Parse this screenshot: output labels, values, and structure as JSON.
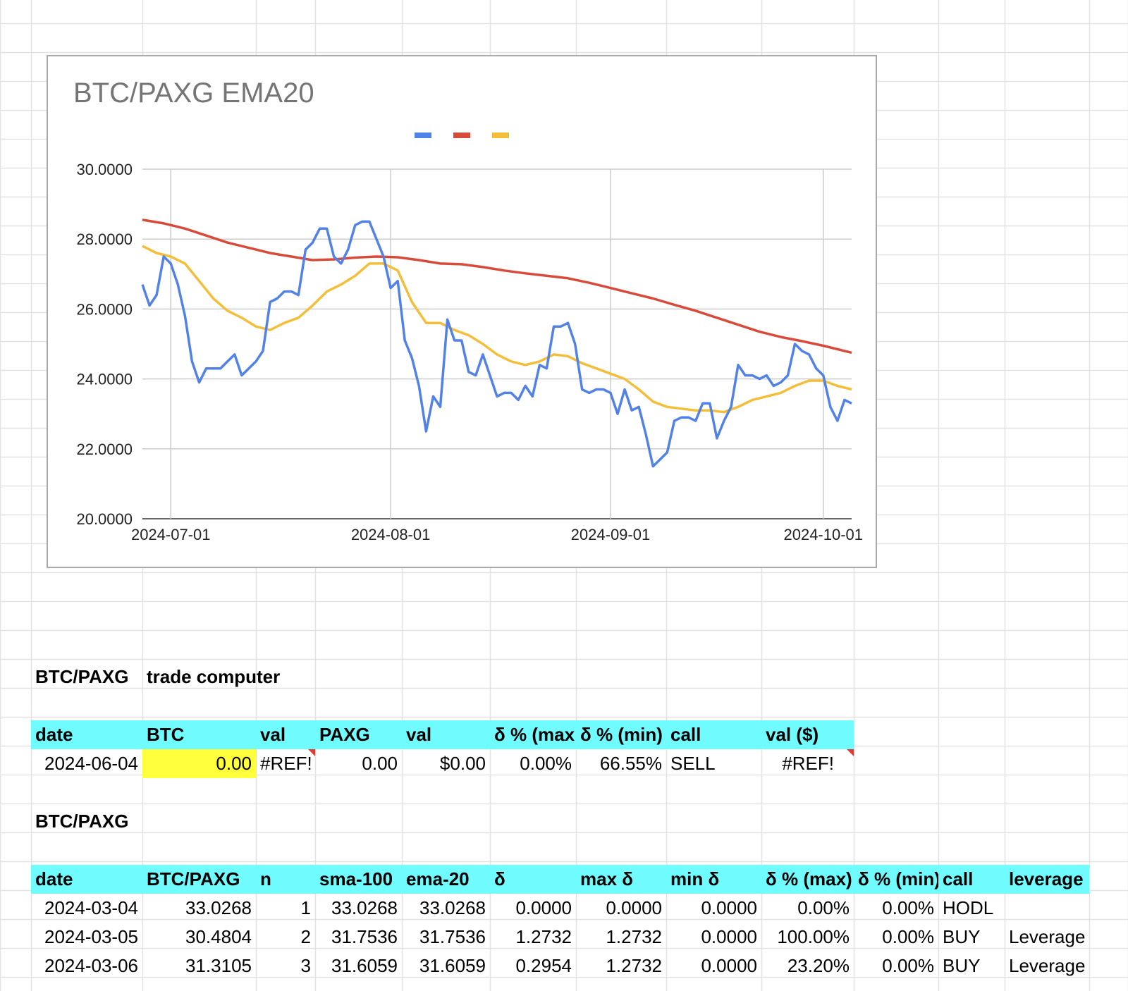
{
  "chart_data": {
    "type": "line",
    "title": "BTC/PAXG EMA20",
    "xlabel": "",
    "ylabel": "",
    "ylim": [
      20,
      30
    ],
    "yticks": [
      "30.0000",
      "28.0000",
      "26.0000",
      "24.0000",
      "22.0000",
      "20.0000"
    ],
    "xticks": [
      "2024-07-01",
      "2024-08-01",
      "2024-09-01",
      "2024-10-01"
    ],
    "xrange": [
      "2024-06-27",
      "2024-10-05"
    ],
    "grid": true,
    "legend": "top",
    "colors": [
      "#5282e8",
      "#d84b3b",
      "#f3bf3b"
    ],
    "series": [
      {
        "x": [
          "2024-06-27",
          "2024-06-28",
          "2024-06-29",
          "2024-06-30",
          "2024-07-01",
          "2024-07-02",
          "2024-07-03",
          "2024-07-04",
          "2024-07-05",
          "2024-07-06",
          "2024-07-07",
          "2024-07-08",
          "2024-07-09",
          "2024-07-10",
          "2024-07-11",
          "2024-07-12",
          "2024-07-13",
          "2024-07-14",
          "2024-07-15",
          "2024-07-16",
          "2024-07-17",
          "2024-07-18",
          "2024-07-19",
          "2024-07-20",
          "2024-07-21",
          "2024-07-22",
          "2024-07-23",
          "2024-07-24",
          "2024-07-25",
          "2024-07-26",
          "2024-07-27",
          "2024-07-28",
          "2024-07-29",
          "2024-07-30",
          "2024-07-31",
          "2024-08-01",
          "2024-08-02",
          "2024-08-03",
          "2024-08-04",
          "2024-08-05",
          "2024-08-06",
          "2024-08-07",
          "2024-08-08",
          "2024-08-09",
          "2024-08-10",
          "2024-08-11",
          "2024-08-12",
          "2024-08-13",
          "2024-08-14",
          "2024-08-15",
          "2024-08-16",
          "2024-08-17",
          "2024-08-18",
          "2024-08-19",
          "2024-08-20",
          "2024-08-21",
          "2024-08-22",
          "2024-08-23",
          "2024-08-24",
          "2024-08-25",
          "2024-08-26",
          "2024-08-27",
          "2024-08-28",
          "2024-08-29",
          "2024-08-30",
          "2024-08-31",
          "2024-09-01",
          "2024-09-02",
          "2024-09-03",
          "2024-09-04",
          "2024-09-05",
          "2024-09-06",
          "2024-09-07",
          "2024-09-08",
          "2024-09-09",
          "2024-09-10",
          "2024-09-11",
          "2024-09-12",
          "2024-09-13",
          "2024-09-14",
          "2024-09-15",
          "2024-09-16",
          "2024-09-17",
          "2024-09-18",
          "2024-09-19",
          "2024-09-20",
          "2024-09-21",
          "2024-09-22",
          "2024-09-23",
          "2024-09-24",
          "2024-09-25",
          "2024-09-26",
          "2024-09-27",
          "2024-09-28",
          "2024-09-29",
          "2024-09-30",
          "2024-10-01",
          "2024-10-02",
          "2024-10-03",
          "2024-10-04",
          "2024-10-05"
        ],
        "y": [
          26.7,
          26.1,
          26.4,
          27.5,
          27.3,
          26.7,
          25.8,
          24.5,
          23.9,
          24.3,
          24.3,
          24.3,
          24.5,
          24.7,
          24.1,
          24.3,
          24.5,
          24.8,
          26.2,
          26.3,
          26.5,
          26.5,
          26.4,
          27.7,
          27.9,
          28.3,
          28.3,
          27.5,
          27.3,
          27.7,
          28.4,
          28.5,
          28.5,
          28.0,
          27.5,
          26.6,
          26.8,
          25.1,
          24.6,
          23.8,
          22.5,
          23.5,
          23.2,
          25.7,
          25.1,
          25.1,
          24.2,
          24.1,
          24.7,
          24.1,
          23.5,
          23.6,
          23.6,
          23.4,
          23.8,
          23.5,
          24.4,
          24.3,
          25.5,
          25.5,
          25.6,
          25.0,
          23.7,
          23.6,
          23.7,
          23.7,
          23.6,
          23.0,
          23.7,
          23.1,
          23.2,
          22.4,
          21.5,
          21.7,
          21.9,
          22.8,
          22.9,
          22.9,
          22.8,
          23.3,
          23.3,
          22.3,
          22.8,
          23.2,
          24.4,
          24.1,
          24.1,
          24.0,
          24.1,
          23.8,
          23.9,
          24.1,
          25.0,
          24.8,
          24.7,
          24.3,
          24.1,
          23.2,
          22.8,
          23.4,
          23.3
        ]
      },
      {
        "x": [
          "2024-06-27",
          "2024-06-30",
          "2024-07-03",
          "2024-07-06",
          "2024-07-09",
          "2024-07-12",
          "2024-07-15",
          "2024-07-18",
          "2024-07-21",
          "2024-07-24",
          "2024-07-27",
          "2024-07-30",
          "2024-08-02",
          "2024-08-05",
          "2024-08-08",
          "2024-08-11",
          "2024-08-14",
          "2024-08-17",
          "2024-08-20",
          "2024-08-23",
          "2024-08-26",
          "2024-08-29",
          "2024-09-01",
          "2024-09-04",
          "2024-09-07",
          "2024-09-10",
          "2024-09-13",
          "2024-09-16",
          "2024-09-19",
          "2024-09-22",
          "2024-09-25",
          "2024-09-28",
          "2024-10-01",
          "2024-10-05"
        ],
        "y": [
          28.55,
          28.45,
          28.3,
          28.1,
          27.9,
          27.75,
          27.6,
          27.5,
          27.4,
          27.42,
          27.47,
          27.5,
          27.48,
          27.4,
          27.3,
          27.28,
          27.2,
          27.1,
          27.02,
          26.95,
          26.88,
          26.75,
          26.6,
          26.45,
          26.3,
          26.12,
          25.95,
          25.75,
          25.55,
          25.35,
          25.2,
          25.08,
          24.95,
          24.75
        ]
      },
      {
        "x": [
          "2024-06-27",
          "2024-06-29",
          "2024-07-01",
          "2024-07-03",
          "2024-07-05",
          "2024-07-07",
          "2024-07-09",
          "2024-07-11",
          "2024-07-13",
          "2024-07-15",
          "2024-07-17",
          "2024-07-19",
          "2024-07-21",
          "2024-07-23",
          "2024-07-25",
          "2024-07-27",
          "2024-07-29",
          "2024-07-31",
          "2024-08-02",
          "2024-08-04",
          "2024-08-06",
          "2024-08-08",
          "2024-08-10",
          "2024-08-12",
          "2024-08-14",
          "2024-08-16",
          "2024-08-18",
          "2024-08-20",
          "2024-08-22",
          "2024-08-24",
          "2024-08-26",
          "2024-08-28",
          "2024-08-30",
          "2024-09-01",
          "2024-09-03",
          "2024-09-05",
          "2024-09-07",
          "2024-09-09",
          "2024-09-11",
          "2024-09-13",
          "2024-09-15",
          "2024-09-17",
          "2024-09-19",
          "2024-09-21",
          "2024-09-23",
          "2024-09-25",
          "2024-09-27",
          "2024-09-29",
          "2024-10-01",
          "2024-10-03",
          "2024-10-05"
        ],
        "y": [
          27.8,
          27.6,
          27.5,
          27.3,
          26.8,
          26.3,
          25.95,
          25.75,
          25.5,
          25.4,
          25.6,
          25.75,
          26.1,
          26.5,
          26.7,
          26.95,
          27.3,
          27.3,
          27.1,
          26.2,
          25.6,
          25.6,
          25.4,
          25.25,
          25.0,
          24.7,
          24.5,
          24.4,
          24.5,
          24.7,
          24.65,
          24.45,
          24.3,
          24.15,
          24.0,
          23.7,
          23.35,
          23.2,
          23.15,
          23.1,
          23.1,
          23.05,
          23.2,
          23.4,
          23.5,
          23.6,
          23.8,
          23.95,
          23.95,
          23.8,
          23.7
        ]
      }
    ]
  },
  "sheet": {
    "trade_title": {
      "a": "BTC/PAXG",
      "b": "trade computer"
    },
    "trade_headers": [
      "date",
      "BTC",
      "val",
      "PAXG",
      "val",
      "δ % (max",
      "δ % (min)",
      "call",
      "val ($)"
    ],
    "trade_row": [
      "2024-06-04",
      "0.00",
      "#REF!",
      "0.00",
      "$0.00",
      "0.00%",
      "66.55%",
      "SELL",
      "#REF!"
    ],
    "table_title": "BTC/PAXG",
    "table_headers": [
      "date",
      "BTC/PAXG",
      "n",
      "sma-100",
      "ema-20",
      "δ",
      "max δ",
      "min δ",
      "δ % (max)",
      "δ % (min)",
      "call",
      "leverage"
    ],
    "table_rows": [
      [
        "2024-03-04",
        "33.0268",
        "1",
        "33.0268",
        "33.0268",
        "0.0000",
        "0.0000",
        "0.0000",
        "0.00%",
        "0.00%",
        "HODL",
        ""
      ],
      [
        "2024-03-05",
        "30.4804",
        "2",
        "31.7536",
        "31.7536",
        "1.2732",
        "1.2732",
        "0.0000",
        "100.00%",
        "0.00%",
        "BUY",
        "Leverage"
      ],
      [
        "2024-03-06",
        "31.3105",
        "3",
        "31.6059",
        "31.6059",
        "0.2954",
        "1.2732",
        "0.0000",
        "23.20%",
        "0.00%",
        "BUY",
        "Leverage"
      ]
    ]
  }
}
